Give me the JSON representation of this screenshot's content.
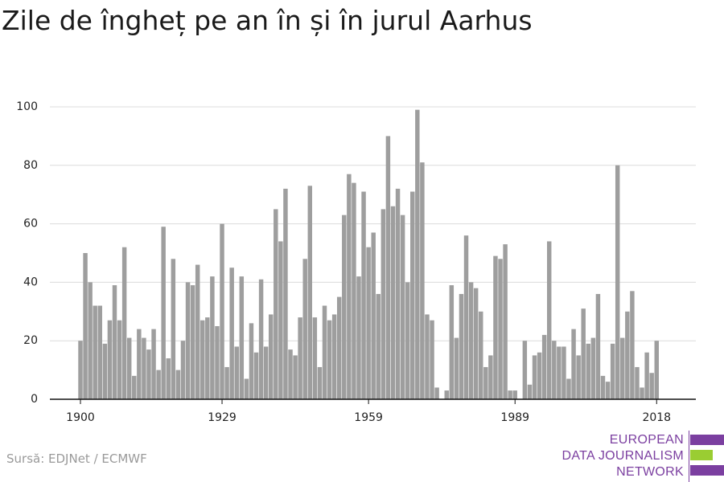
{
  "title": "Zile de îngheț pe an în și în jurul Aarhus",
  "source": "Sursă: EDJNet / ECMWF",
  "logo": {
    "lines": [
      "EUROPEAN",
      "DATA JOURNALISM",
      "NETWORK"
    ],
    "colors": {
      "text": "#7b3fa0",
      "bar_purple": "#7b3fa0",
      "bar_green": "#9acd32"
    }
  },
  "chart_data": {
    "type": "bar",
    "title": "Zile de îngheț pe an în și în jurul Aarhus",
    "xlabel": "",
    "ylabel": "",
    "ylim": [
      0,
      100
    ],
    "yticks": [
      0,
      20,
      40,
      60,
      80,
      100
    ],
    "xticks": [
      1900,
      1929,
      1959,
      1989,
      2018
    ],
    "grid": true,
    "bar_color": "#9e9e9e",
    "start_year": 1900,
    "end_year": 2018,
    "values": [
      20,
      50,
      40,
      32,
      32,
      19,
      27,
      39,
      27,
      52,
      21,
      8,
      24,
      21,
      17,
      24,
      10,
      59,
      14,
      48,
      10,
      20,
      40,
      39,
      46,
      27,
      28,
      42,
      25,
      60,
      11,
      45,
      18,
      42,
      7,
      26,
      16,
      41,
      18,
      29,
      65,
      54,
      72,
      17,
      15,
      28,
      48,
      73,
      28,
      11,
      32,
      27,
      29,
      35,
      63,
      77,
      74,
      42,
      71,
      52,
      57,
      36,
      65,
      90,
      66,
      72,
      63,
      40,
      71,
      99,
      81,
      29,
      27,
      4,
      0,
      3,
      39,
      21,
      36,
      56,
      40,
      38,
      30,
      11,
      15,
      49,
      48,
      53,
      3,
      3,
      0,
      20,
      5,
      15,
      16,
      22,
      54,
      20,
      18,
      18,
      7,
      24,
      15,
      31,
      19,
      21,
      36,
      8,
      6,
      19,
      80,
      21,
      30,
      37,
      11,
      4,
      16,
      9,
      20
    ]
  }
}
